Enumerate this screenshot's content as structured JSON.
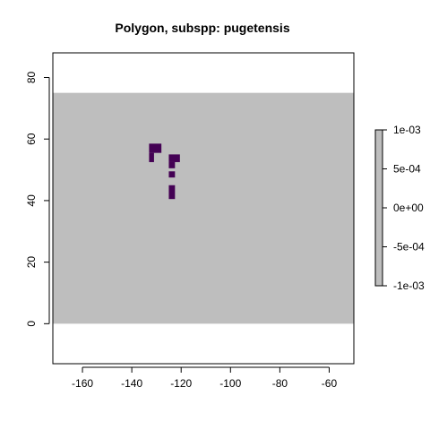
{
  "chart_data": {
    "type": "heatmap",
    "title": "Polygon, subspp: pugetensis",
    "xlabel": "",
    "ylabel": "",
    "xlim": [
      -172,
      -50
    ],
    "ylim": [
      -13,
      88
    ],
    "x_ticks": [
      -160,
      -140,
      -120,
      -100,
      -80,
      -60
    ],
    "x_tick_labels": [
      "-160",
      "-140",
      "-120",
      "-100",
      "-80",
      "-60"
    ],
    "y_ticks": [
      0,
      20,
      40,
      60,
      80
    ],
    "y_tick_labels": [
      "0",
      "20",
      "40",
      "60",
      "80"
    ],
    "grid": false,
    "raster_extent": {
      "xmin": -172,
      "xmax": -50,
      "ymin": 0,
      "ymax": 75
    },
    "background_color": "#bebebe",
    "cell_color": "#440154",
    "cells": [
      {
        "x0": -133,
        "x1": -128,
        "y0": 55.5,
        "y1": 58.5
      },
      {
        "x0": -133,
        "x1": -131,
        "y0": 52.5,
        "y1": 55.5
      },
      {
        "x0": -125,
        "x1": -120.5,
        "y0": 52.5,
        "y1": 55
      },
      {
        "x0": -125,
        "x1": -122.5,
        "y0": 50.5,
        "y1": 52.5
      },
      {
        "x0": -125,
        "x1": -122.5,
        "y0": 47.5,
        "y1": 49.5
      },
      {
        "x0": -125,
        "x1": -122.5,
        "y0": 40.5,
        "y1": 45
      }
    ],
    "legend": {
      "position": "right",
      "color": "#bebebe",
      "range": [
        -0.001,
        0.001
      ],
      "ticks": [
        0.001,
        0.0005,
        0,
        -0.0005,
        -0.001
      ],
      "tick_labels": [
        "1e-03",
        "5e-04",
        "0e+00",
        "-5e-04",
        "-1e-03"
      ]
    }
  }
}
